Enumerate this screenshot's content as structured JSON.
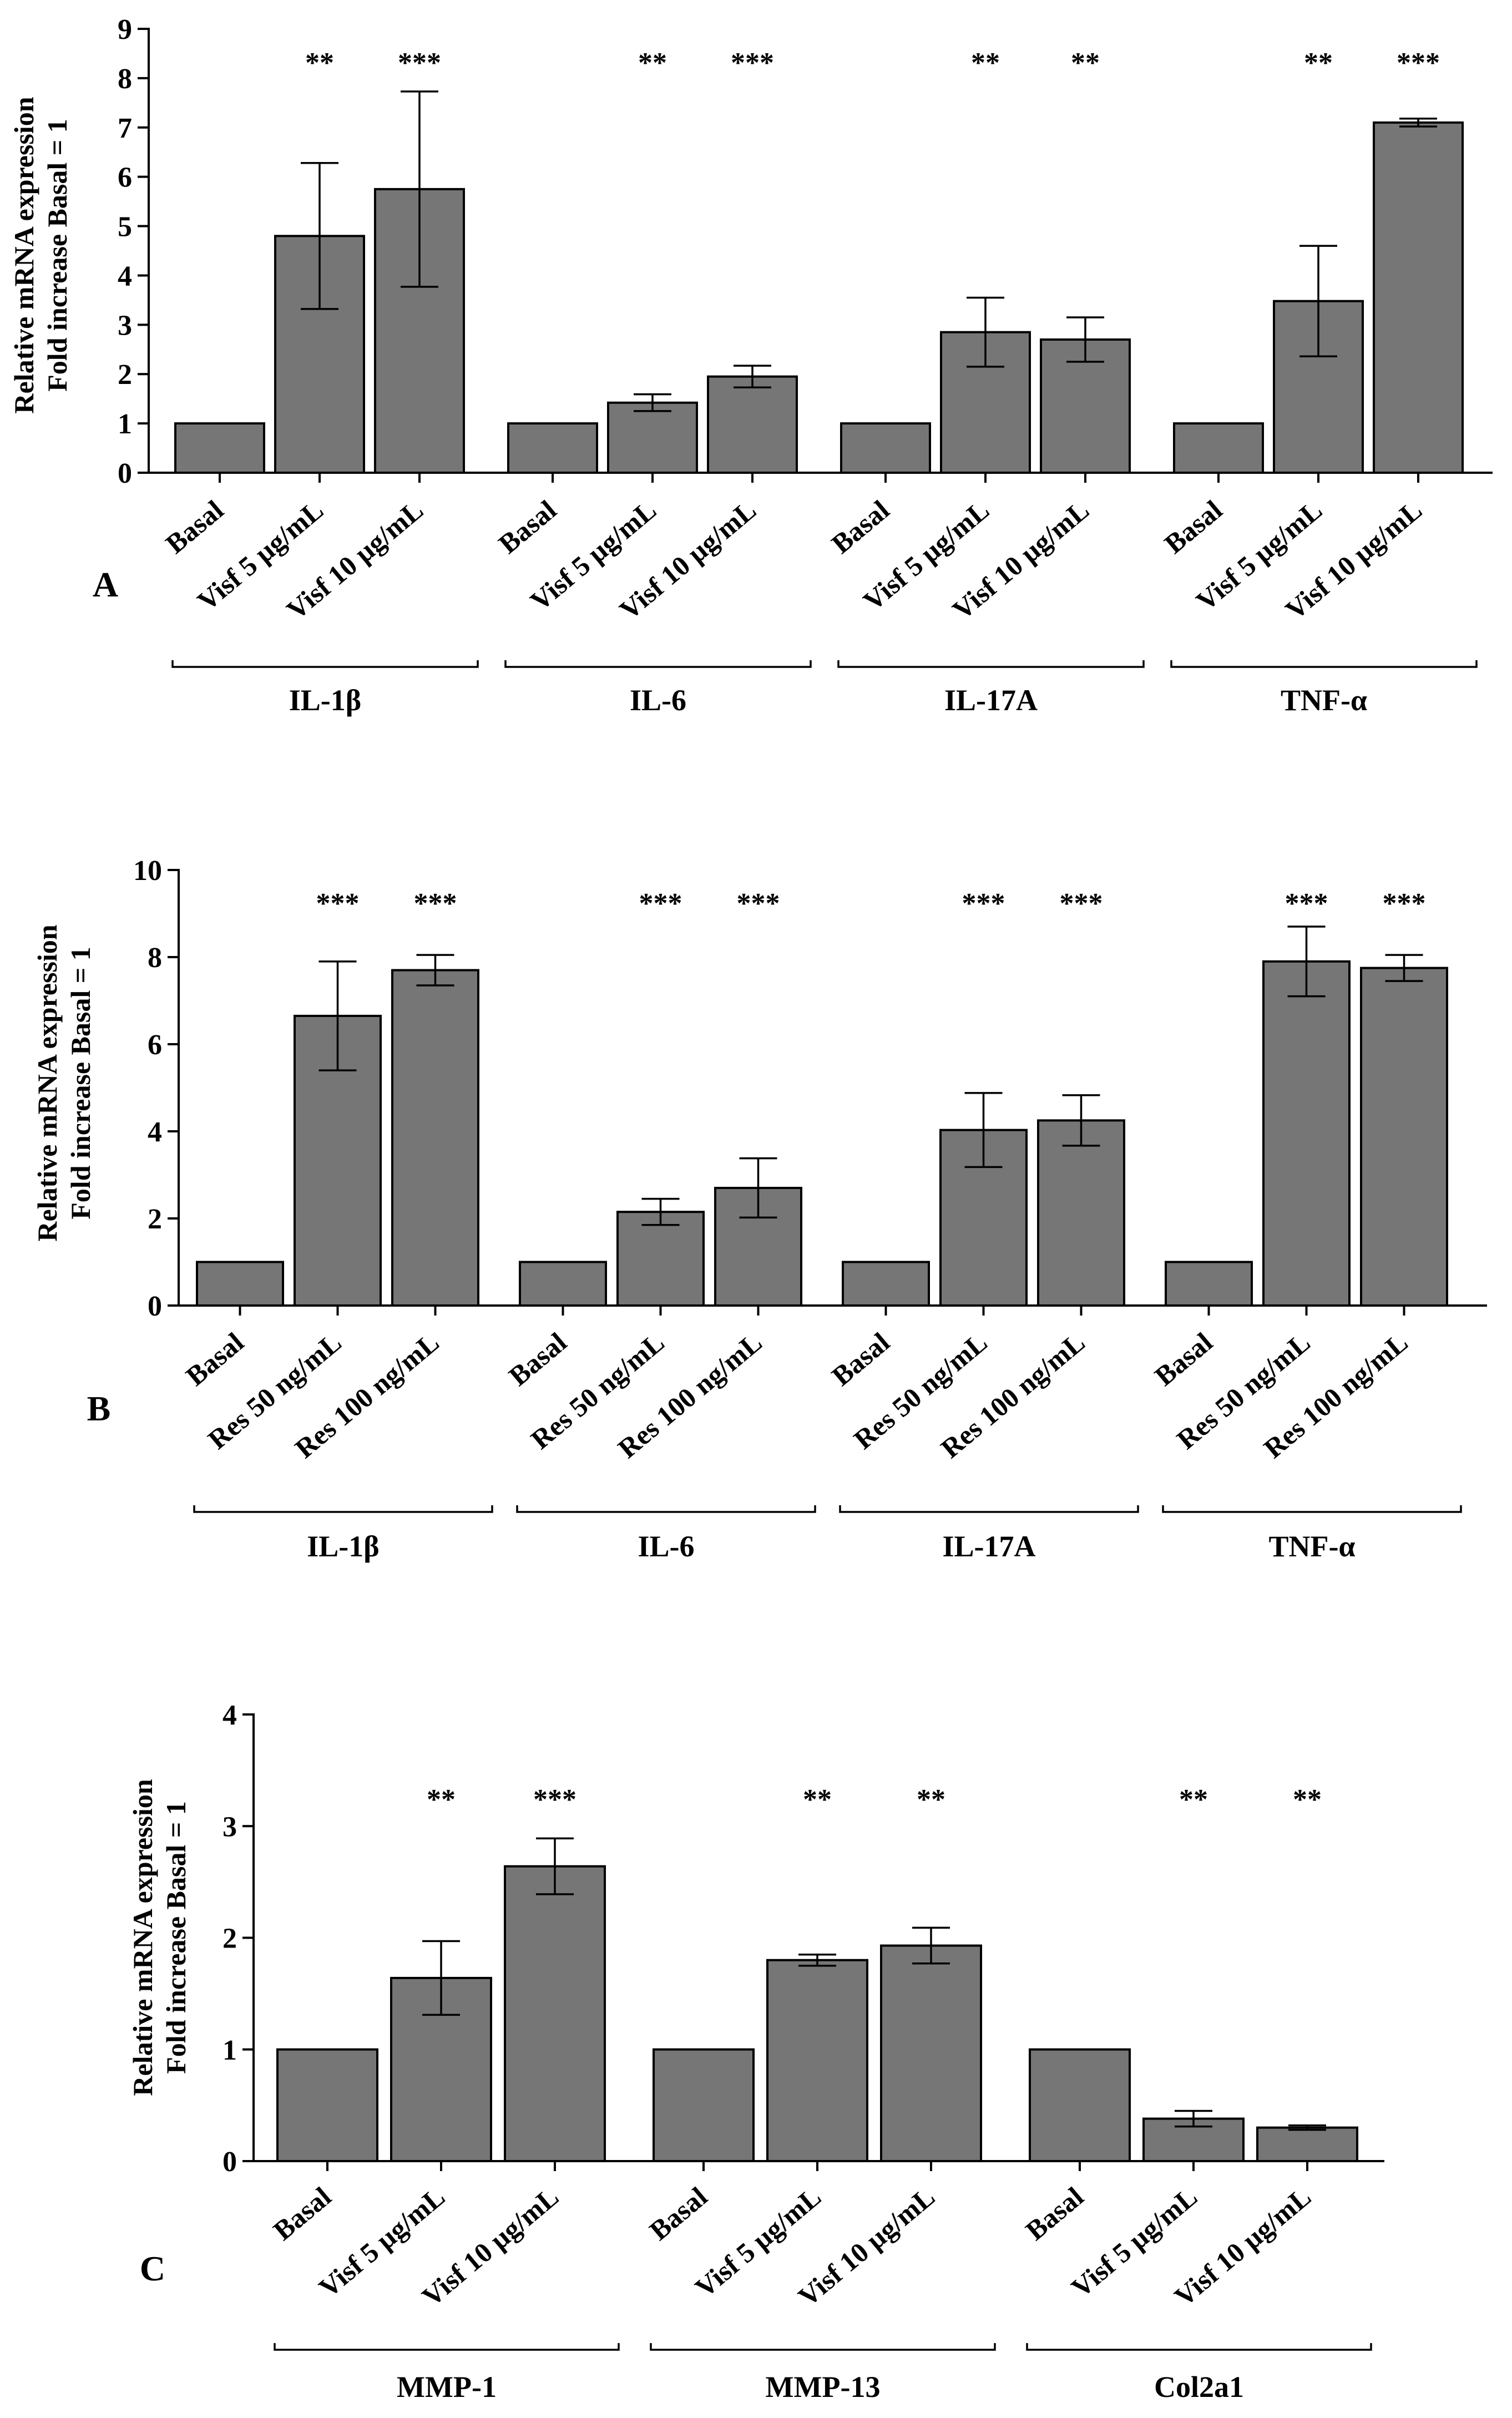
{
  "colors": {
    "bar_fill": "#767676",
    "axis": "#000000",
    "background": "#ffffff"
  },
  "chart_data": [
    {
      "id": "A",
      "type": "bar",
      "panel_label": "A",
      "ylabel": [
        "Relative mRNA expression",
        "Fold increase Basal = 1"
      ],
      "ylim": [
        0,
        9
      ],
      "yticks": [
        "0",
        "1",
        "2",
        "3",
        "4",
        "5",
        "6",
        "7",
        "8",
        "9"
      ],
      "grid": false,
      "groups": [
        {
          "name": "IL-1β",
          "bars": [
            {
              "label": "Basal",
              "value": 1,
              "err": 0,
              "sig": ""
            },
            {
              "label": "Visf 5 µg/mL",
              "value": 4.8,
              "err": 1.48,
              "sig": "**"
            },
            {
              "label": "Visf 10 µg/mL",
              "value": 5.75,
              "err": 1.98,
              "sig": "***"
            }
          ]
        },
        {
          "name": "IL-6",
          "bars": [
            {
              "label": "Basal",
              "value": 1,
              "err": 0,
              "sig": ""
            },
            {
              "label": "Visf 5 µg/mL",
              "value": 1.42,
              "err": 0.17,
              "sig": "**"
            },
            {
              "label": "Visf 10 µg/mL",
              "value": 1.95,
              "err": 0.22,
              "sig": "***"
            }
          ]
        },
        {
          "name": "IL-17A",
          "bars": [
            {
              "label": "Basal",
              "value": 1,
              "err": 0,
              "sig": ""
            },
            {
              "label": "Visf 5 µg/mL",
              "value": 2.85,
              "err": 0.7,
              "sig": "**"
            },
            {
              "label": "Visf 10 µg/mL",
              "value": 2.7,
              "err": 0.45,
              "sig": "**"
            }
          ]
        },
        {
          "name": "TNF-α",
          "bars": [
            {
              "label": "Basal",
              "value": 1,
              "err": 0,
              "sig": ""
            },
            {
              "label": "Visf 5 µg/mL",
              "value": 3.48,
              "err": 1.12,
              "sig": "**"
            },
            {
              "label": "Visf 10 µg/mL",
              "value": 7.1,
              "err": 0.08,
              "sig": "***"
            }
          ]
        }
      ]
    },
    {
      "id": "B",
      "type": "bar",
      "panel_label": "B",
      "ylabel": [
        "Relative mRNA expression",
        "Fold increase Basal = 1"
      ],
      "ylim": [
        0,
        10
      ],
      "yticks": [
        "0",
        "2",
        "4",
        "6",
        "8",
        "10"
      ],
      "grid": false,
      "groups": [
        {
          "name": "IL-1β",
          "bars": [
            {
              "label": "Basal",
              "value": 1,
              "err": 0,
              "sig": ""
            },
            {
              "label": "Res 50 ng/mL",
              "value": 6.65,
              "err": 1.25,
              "sig": "***"
            },
            {
              "label": "Res 100 ng/mL",
              "value": 7.7,
              "err": 0.35,
              "sig": "***"
            }
          ]
        },
        {
          "name": "IL-6",
          "bars": [
            {
              "label": "Basal",
              "value": 1,
              "err": 0,
              "sig": ""
            },
            {
              "label": "Res 50 ng/mL",
              "value": 2.15,
              "err": 0.3,
              "sig": "***"
            },
            {
              "label": "Res 100 ng/mL",
              "value": 2.7,
              "err": 0.68,
              "sig": "***"
            }
          ]
        },
        {
          "name": "IL-17A",
          "bars": [
            {
              "label": "Basal",
              "value": 1,
              "err": 0,
              "sig": ""
            },
            {
              "label": "Res 50 ng/mL",
              "value": 4.03,
              "err": 0.85,
              "sig": "***"
            },
            {
              "label": "Res 100 ng/mL",
              "value": 4.25,
              "err": 0.58,
              "sig": "***"
            }
          ]
        },
        {
          "name": "TNF-α",
          "bars": [
            {
              "label": "Basal",
              "value": 1,
              "err": 0,
              "sig": ""
            },
            {
              "label": "Res 50 ng/mL",
              "value": 7.9,
              "err": 0.8,
              "sig": "***"
            },
            {
              "label": "Res 100 ng/mL",
              "value": 7.75,
              "err": 0.3,
              "sig": "***"
            }
          ]
        }
      ]
    },
    {
      "id": "C",
      "type": "bar",
      "panel_label": "C",
      "ylabel": [
        "Relative mRNA expression",
        "Fold increase Basal = 1"
      ],
      "ylim": [
        0,
        4
      ],
      "yticks": [
        "0",
        "1",
        "2",
        "3",
        "4"
      ],
      "grid": false,
      "groups": [
        {
          "name": "MMP-1",
          "bars": [
            {
              "label": "Basal",
              "value": 1,
              "err": 0,
              "sig": ""
            },
            {
              "label": "Visf 5 µg/mL",
              "value": 1.64,
              "err": 0.33,
              "sig": "**"
            },
            {
              "label": "Visf 10 µg/mL",
              "value": 2.64,
              "err": 0.25,
              "sig": "***"
            }
          ]
        },
        {
          "name": "MMP-13",
          "bars": [
            {
              "label": "Basal",
              "value": 1,
              "err": 0,
              "sig": ""
            },
            {
              "label": "Visf 5 µg/mL",
              "value": 1.8,
              "err": 0.05,
              "sig": "**"
            },
            {
              "label": "Visf 10 µg/mL",
              "value": 1.93,
              "err": 0.16,
              "sig": "**"
            }
          ]
        },
        {
          "name": "Col2a1",
          "bars": [
            {
              "label": "Basal",
              "value": 1,
              "err": 0,
              "sig": ""
            },
            {
              "label": "Visf 5 µg/mL",
              "value": 0.38,
              "err": 0.07,
              "sig": "**"
            },
            {
              "label": "Visf 10 µg/mL",
              "value": 0.3,
              "err": 0.02,
              "sig": "**"
            }
          ]
        }
      ]
    }
  ]
}
